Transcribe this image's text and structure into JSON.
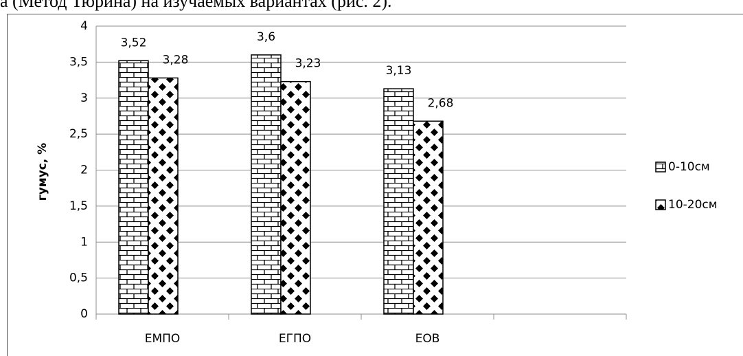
{
  "context_text": "а (Метод Тюрина) на изучаемых вариантах (рис. 2).",
  "chart_data": {
    "type": "bar",
    "y_label": "гумус, %",
    "categories": [
      "ЕМПО",
      "ЕГПО",
      "ЕОВ",
      null
    ],
    "series": [
      {
        "name": "0-10см",
        "color": "#000000",
        "pattern": "brick",
        "values": [
          3.52,
          3.6,
          3.13,
          null
        ],
        "value_labels": [
          "3,52",
          "3,6",
          "3,13",
          null
        ]
      },
      {
        "name": "10-20см",
        "color": "#000000",
        "pattern": "diamond",
        "values": [
          3.28,
          3.23,
          2.68,
          null
        ],
        "value_labels": [
          "3,28",
          "3,23",
          "2,68",
          null
        ]
      }
    ],
    "ylim": [
      0,
      4
    ],
    "yticks": [
      0,
      {
        "value": 0.5,
        "label": "0,5"
      },
      1,
      {
        "value": 1.5,
        "label": "1,5"
      },
      2,
      {
        "value": 2.5,
        "label": "2,5"
      },
      3,
      {
        "value": 3.5,
        "label": "3,5"
      },
      4
    ],
    "grid": true,
    "legend": "right"
  }
}
